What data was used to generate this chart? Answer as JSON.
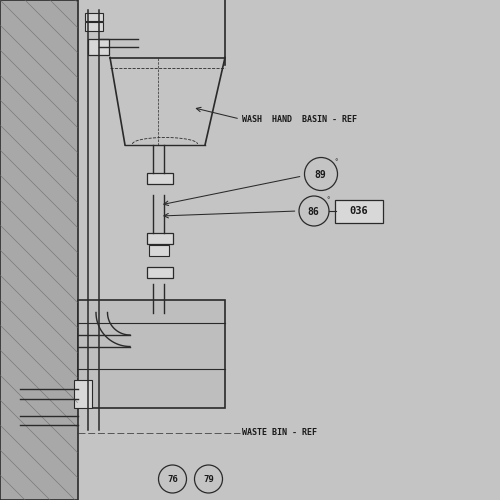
{
  "bg_color": "#d8d8d8",
  "title": "WASH  HAND  BASIN - REF",
  "waste_bin_label": "WASTE BIN - REF",
  "label_89": "89",
  "label_86": "86",
  "label_036": "036",
  "circle_numbers_bottom": [
    "76",
    "79"
  ],
  "line_color": "#2a2a2a",
  "text_color": "#1a1a1a",
  "wall_fill": "#a8a8a8",
  "box_fill": "#bebebe",
  "fig_bg": "#c4c4c4"
}
